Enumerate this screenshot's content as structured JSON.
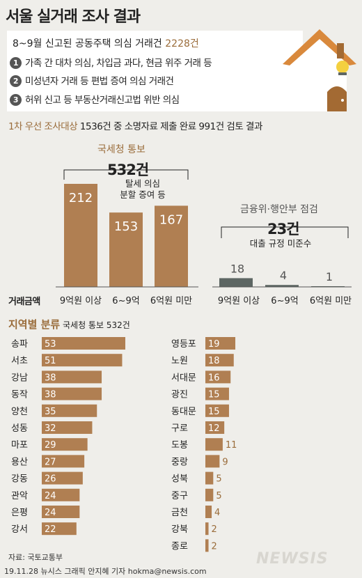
{
  "title": "서울 실거래 조사 결과",
  "headline": {
    "text": "8~9월 신고된 공동주택 의심 거래건",
    "count": "2228건"
  },
  "suspicions": [
    {
      "num": "1",
      "text": "가족 간 대차 의심, 차입금 과다, 현금 위주 거래 등"
    },
    {
      "num": "2",
      "text": "미성년자 거래 등 편법 증여 의심 거래건"
    },
    {
      "num": "3",
      "text": "허위 신고 등 부동산거래신고법 위반 의심"
    }
  ],
  "subhead": {
    "hl": "1차 우선 조사대상",
    "text": "1536건 중 소명자료 제출 완료 991건 검토 결과"
  },
  "colors": {
    "brown": "#b07f52",
    "darkgray": "#5d6663",
    "accent": "#9a6c3a",
    "house_wall": "#ffffff",
    "house_roof": "#d9893c",
    "house_door": "#a36a33",
    "house_light": "#f4d03f"
  },
  "amount_label": "거래금액",
  "chart_data": [
    {
      "type": "bar",
      "title": "국세청 통보",
      "total": "532건",
      "note": [
        "탈세 의심",
        "분할 증여 등"
      ],
      "categories": [
        "9억원 이상",
        "6~9억",
        "6억원 미만"
      ],
      "values": [
        212,
        153,
        167
      ],
      "ylim": [
        0,
        212
      ]
    },
    {
      "type": "bar",
      "title": "금융위·행안부 점검",
      "total": "23건",
      "note": [
        "대출 규정 미준수"
      ],
      "categories": [
        "9억원 이상",
        "6~9억",
        "6억원 미만"
      ],
      "values": [
        18,
        4,
        1
      ],
      "ylim": [
        0,
        212
      ]
    },
    {
      "type": "bar",
      "title": "지역별 분류",
      "subtitle": "국세청 통보 532건",
      "categories": [
        "송파",
        "서초",
        "강남",
        "동작",
        "양천",
        "성동",
        "마포",
        "용산",
        "강동",
        "관악",
        "은평",
        "강서",
        "영등포",
        "노원",
        "서대문",
        "광진",
        "동대문",
        "구로",
        "도봉",
        "중랑",
        "성북",
        "중구",
        "금천",
        "강북",
        "종로"
      ],
      "values": [
        53,
        51,
        38,
        38,
        35,
        32,
        29,
        27,
        26,
        24,
        24,
        22,
        19,
        18,
        16,
        15,
        15,
        12,
        11,
        9,
        5,
        5,
        4,
        2,
        2
      ],
      "xlim": [
        0,
        53
      ]
    }
  ],
  "source": "자료: 국토교통부",
  "credit": "19.11.28 뉴시스 그래픽 안지혜 기자 hokma@newsis.com",
  "logo": "NEWSIS"
}
